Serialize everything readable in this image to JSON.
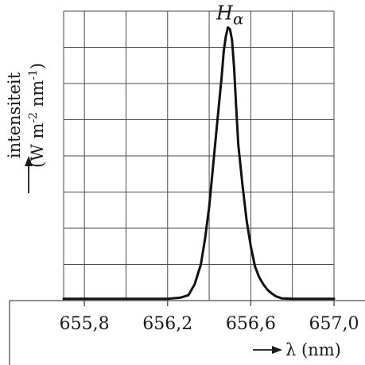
{
  "chart_data": {
    "type": "line",
    "title": "",
    "ylabel_line1": "intensiteit",
    "ylabel_line2": "(W m-2 nm-1)",
    "ylabel_unit_parts": [
      "(W m",
      "-2",
      " nm",
      "-1",
      ")"
    ],
    "xlabel": "λ (nm)",
    "xticks": [
      "655,8",
      "656,2",
      "656,6",
      "657,0"
    ],
    "xlim": [
      655.7,
      657.0
    ],
    "ylim": [
      0,
      8
    ],
    "grid": true,
    "annotation": {
      "base": "H",
      "sub": "α",
      "x": 656.5
    },
    "series": [
      {
        "x": [
          655.7,
          655.8,
          655.9,
          656.0,
          656.1,
          656.2,
          656.26,
          656.3,
          656.33,
          656.36,
          656.38,
          656.4,
          656.42,
          656.44,
          656.46,
          656.47,
          656.48,
          656.49,
          656.5,
          656.51,
          656.52,
          656.53,
          656.54,
          656.56,
          656.58,
          656.6,
          656.62,
          656.64,
          656.66,
          656.68,
          656.7,
          656.72,
          656.75,
          656.8,
          656.9,
          657.0
        ],
        "y": [
          0.05,
          0.05,
          0.05,
          0.05,
          0.05,
          0.05,
          0.08,
          0.15,
          0.45,
          1.0,
          1.7,
          2.6,
          3.8,
          5.0,
          6.2,
          6.9,
          7.3,
          7.55,
          7.5,
          7.2,
          6.4,
          5.3,
          4.3,
          3.2,
          2.2,
          1.5,
          0.95,
          0.65,
          0.45,
          0.3,
          0.2,
          0.12,
          0.06,
          0.05,
          0.05,
          0.05
        ]
      }
    ]
  }
}
